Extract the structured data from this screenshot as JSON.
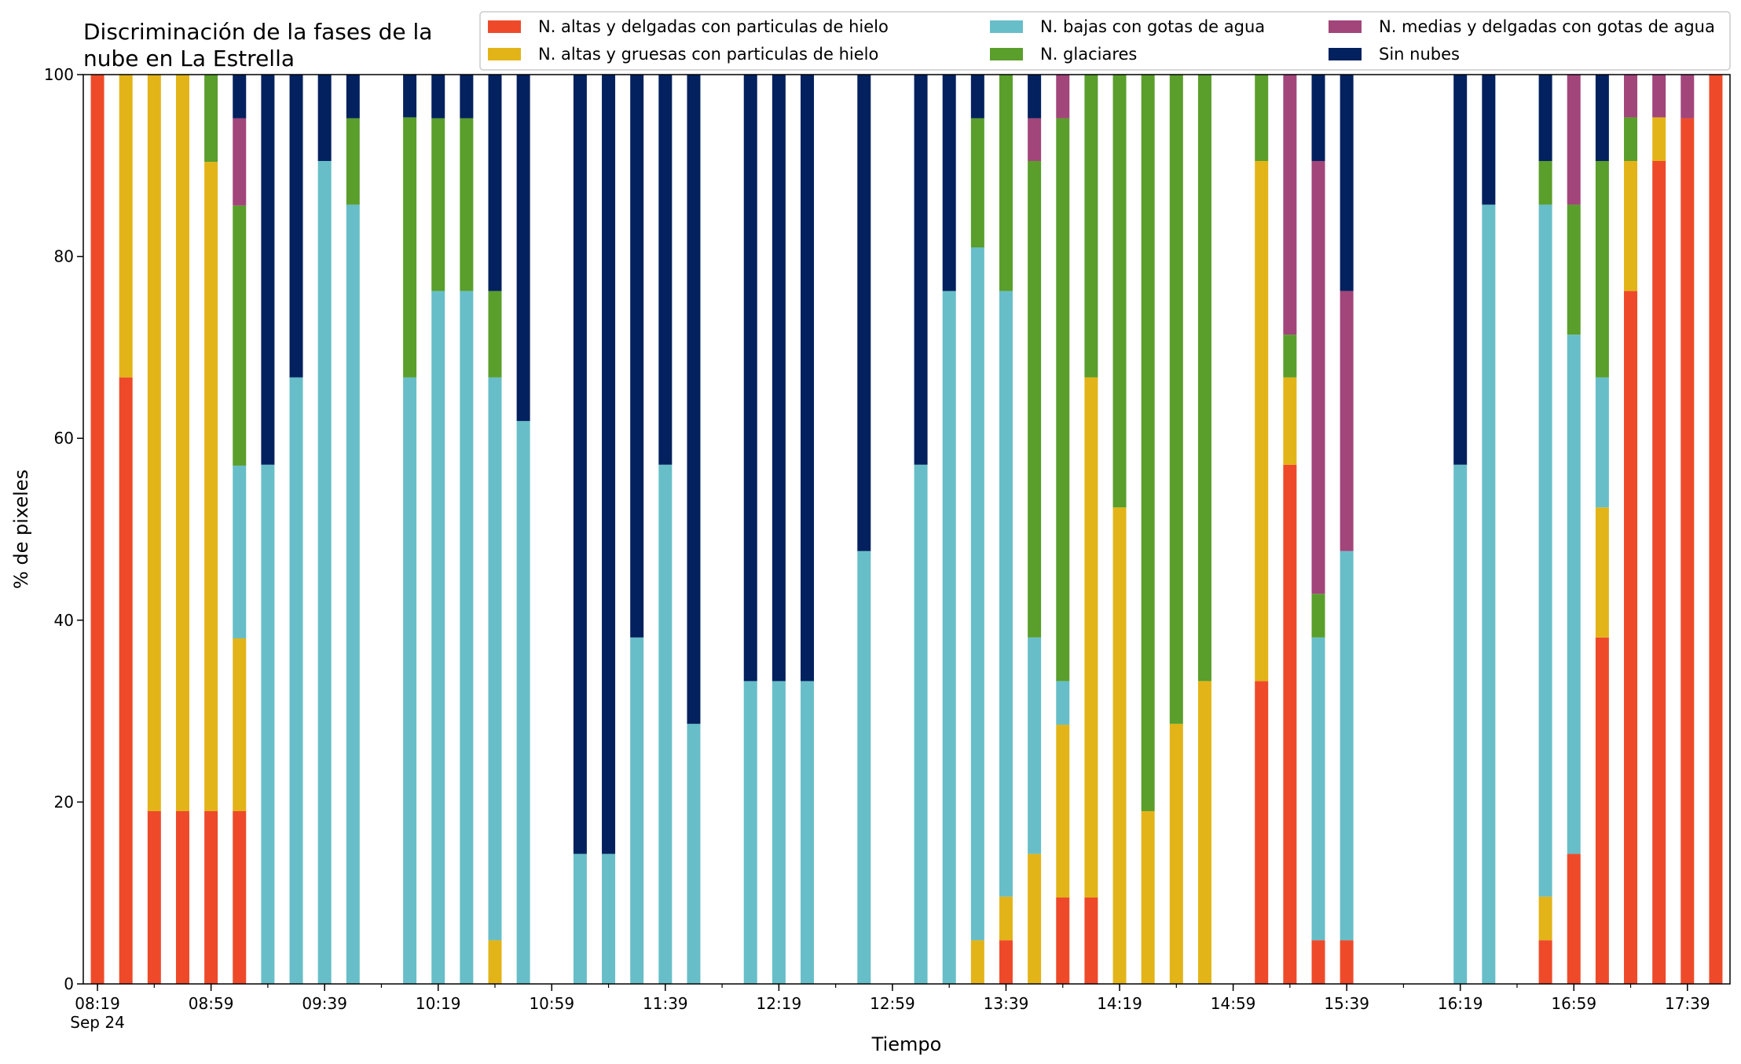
{
  "chart_data": {
    "type": "bar",
    "stacked": true,
    "title_lines": [
      "Discriminación de la fases de la",
      "nube en La Estrella"
    ],
    "xlabel": "Tiempo",
    "ylabel": "% de pixeles",
    "ylim": [
      0,
      100
    ],
    "yticks": [
      "0",
      "20",
      "40",
      "60",
      "80",
      "100"
    ],
    "x_time_range_minutes": [
      "08:14",
      "17:54"
    ],
    "x_date_label": "Sep 24",
    "x_tick_labels": [
      "08:19",
      "08:59",
      "09:39",
      "10:19",
      "10:59",
      "11:39",
      "12:19",
      "12:59",
      "13:39",
      "14:19",
      "14:59",
      "15:39",
      "16:19",
      "16:59",
      "17:39"
    ],
    "grid": false,
    "legend_placement": "top-right",
    "series": [
      {
        "name": "N. altas y delgadas con particulas de hielo",
        "color": "#EE4A2A"
      },
      {
        "name": "N. altas y gruesas con particulas de hielo",
        "color": "#E3B418"
      },
      {
        "name": "N. bajas con gotas de agua",
        "color": "#67BEC8"
      },
      {
        "name": "N. glaciares",
        "color": "#5A9E2C"
      },
      {
        "name": "N. medias y delgadas con gotas de agua",
        "color": "#A2457A"
      },
      {
        "name": "Sin nubes",
        "color": "#03215E"
      }
    ],
    "bars": [
      {
        "time": "08:19",
        "values": [
          100,
          0,
          0,
          0,
          0,
          0
        ]
      },
      {
        "time": "08:29",
        "values": [
          66.7,
          33.3,
          0,
          0,
          0,
          0
        ]
      },
      {
        "time": "08:39",
        "values": [
          19,
          81,
          0,
          0,
          0,
          0
        ]
      },
      {
        "time": "08:49",
        "values": [
          19,
          81,
          0,
          0,
          0,
          0
        ]
      },
      {
        "time": "08:59",
        "values": [
          19,
          71.4,
          0,
          9.6,
          0,
          0
        ]
      },
      {
        "time": "09:09",
        "values": [
          19,
          19,
          19,
          28.6,
          9.6,
          4.8
        ]
      },
      {
        "time": "09:19",
        "values": [
          0,
          0,
          57.1,
          0,
          0,
          42.9
        ]
      },
      {
        "time": "09:29",
        "values": [
          0,
          0,
          66.7,
          0,
          0,
          33.3
        ]
      },
      {
        "time": "09:39",
        "values": [
          0,
          0,
          90.5,
          0,
          0,
          9.5
        ]
      },
      {
        "time": "09:49",
        "values": [
          0,
          0,
          85.7,
          9.5,
          0,
          4.8
        ]
      },
      {
        "time": "10:09",
        "values": [
          0,
          0,
          66.7,
          28.6,
          0,
          4.7
        ]
      },
      {
        "time": "10:19",
        "values": [
          0,
          0,
          76.2,
          19,
          0,
          4.8
        ]
      },
      {
        "time": "10:29",
        "values": [
          0,
          0,
          76.2,
          19,
          0,
          4.8
        ]
      },
      {
        "time": "10:39",
        "values": [
          0,
          4.8,
          61.9,
          9.5,
          0,
          23.8
        ]
      },
      {
        "time": "10:49",
        "values": [
          0,
          0,
          61.9,
          0,
          0,
          38.1
        ]
      },
      {
        "time": "11:09",
        "values": [
          0,
          0,
          14.3,
          0,
          0,
          85.7
        ]
      },
      {
        "time": "11:19",
        "values": [
          0,
          0,
          14.3,
          0,
          0,
          85.7
        ]
      },
      {
        "time": "11:29",
        "values": [
          0,
          0,
          38.1,
          0,
          0,
          61.9
        ]
      },
      {
        "time": "11:39",
        "values": [
          0,
          0,
          57.1,
          0,
          0,
          42.9
        ]
      },
      {
        "time": "11:49",
        "values": [
          0,
          0,
          28.6,
          0,
          0,
          71.4
        ]
      },
      {
        "time": "12:09",
        "values": [
          0,
          0,
          33.3,
          0,
          0,
          66.7
        ]
      },
      {
        "time": "12:19",
        "values": [
          0,
          0,
          33.3,
          0,
          0,
          66.7
        ]
      },
      {
        "time": "12:29",
        "values": [
          0,
          0,
          33.3,
          0,
          0,
          66.7
        ]
      },
      {
        "time": "12:49",
        "values": [
          0,
          0,
          47.6,
          0,
          0,
          52.4
        ]
      },
      {
        "time": "13:09",
        "values": [
          0,
          0,
          57.1,
          0,
          0,
          42.9
        ]
      },
      {
        "time": "13:19",
        "values": [
          0,
          0,
          76.2,
          0,
          0,
          23.8
        ]
      },
      {
        "time": "13:29",
        "values": [
          0,
          4.8,
          76.2,
          14.2,
          0,
          4.8
        ]
      },
      {
        "time": "13:39",
        "values": [
          4.8,
          4.8,
          66.6,
          23.8,
          0,
          0
        ]
      },
      {
        "time": "13:49",
        "values": [
          0,
          14.3,
          23.8,
          52.4,
          4.7,
          4.8
        ]
      },
      {
        "time": "13:59",
        "values": [
          9.5,
          19,
          4.8,
          61.9,
          4.8,
          0
        ]
      },
      {
        "time": "14:09",
        "values": [
          9.5,
          57.2,
          0,
          33.3,
          0,
          0
        ]
      },
      {
        "time": "14:19",
        "values": [
          0,
          52.4,
          0,
          47.6,
          0,
          0
        ]
      },
      {
        "time": "14:29",
        "values": [
          0,
          19,
          0,
          81,
          0,
          0
        ]
      },
      {
        "time": "14:39",
        "values": [
          0,
          28.6,
          0,
          71.4,
          0,
          0
        ]
      },
      {
        "time": "14:49",
        "values": [
          0,
          33.3,
          0,
          66.7,
          0,
          0
        ]
      },
      {
        "time": "15:09",
        "values": [
          33.3,
          57.2,
          0,
          9.5,
          0,
          0
        ]
      },
      {
        "time": "15:19",
        "values": [
          57.1,
          9.6,
          0,
          4.7,
          28.6,
          0
        ]
      },
      {
        "time": "15:29",
        "values": [
          4.8,
          0,
          33.3,
          4.8,
          47.6,
          9.5
        ]
      },
      {
        "time": "15:39",
        "values": [
          4.8,
          0,
          42.8,
          0,
          28.6,
          23.8
        ]
      },
      {
        "time": "16:19",
        "values": [
          0,
          0,
          57.1,
          0,
          0,
          42.9
        ]
      },
      {
        "time": "16:29",
        "values": [
          0,
          0,
          85.7,
          0,
          0,
          14.3
        ]
      },
      {
        "time": "16:49",
        "values": [
          4.8,
          4.8,
          76.1,
          4.8,
          0,
          9.5
        ]
      },
      {
        "time": "16:59",
        "values": [
          14.3,
          0,
          57.1,
          14.3,
          14.3,
          0
        ]
      },
      {
        "time": "17:09",
        "values": [
          38.1,
          14.3,
          14.3,
          23.8,
          0,
          9.5
        ]
      },
      {
        "time": "17:19",
        "values": [
          76.2,
          14.3,
          0,
          4.8,
          4.7,
          0
        ]
      },
      {
        "time": "17:29",
        "values": [
          90.5,
          4.8,
          0,
          0,
          4.7,
          0
        ]
      },
      {
        "time": "17:39",
        "values": [
          95.2,
          0,
          0,
          0,
          4.8,
          0
        ]
      },
      {
        "time": "17:49",
        "values": [
          100,
          0,
          0,
          0,
          0,
          0
        ]
      }
    ]
  }
}
